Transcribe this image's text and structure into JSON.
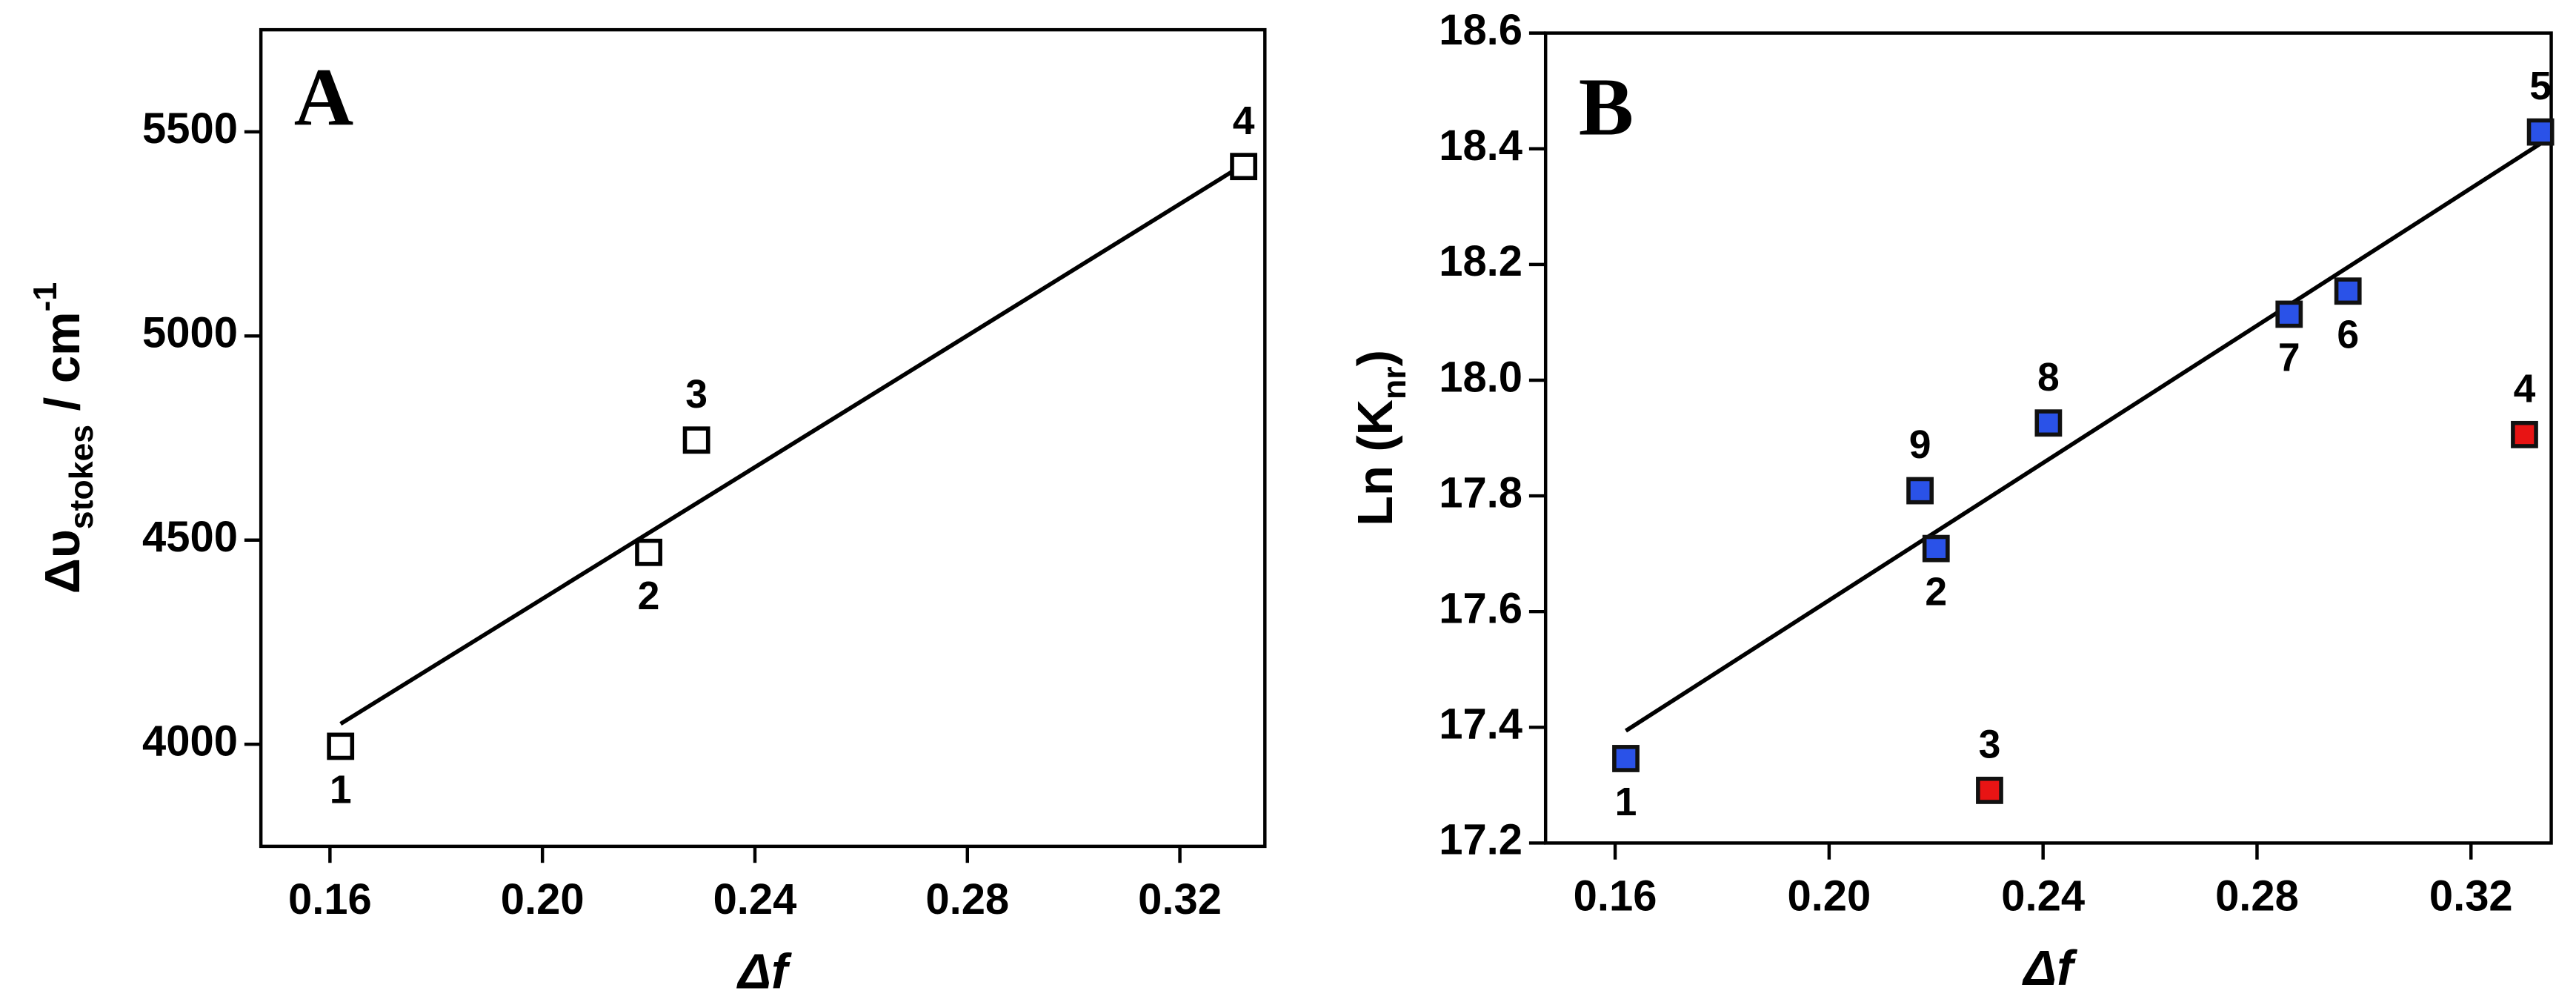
{
  "chart_data": [
    {
      "type": "scatter",
      "panel_label": "A",
      "xlabel": "Δf",
      "ylabel_parts": [
        "Δυ",
        "stokes",
        " / cm",
        "-1"
      ],
      "xlim": [
        0.147,
        0.336
      ],
      "ylim": [
        3750,
        5750
      ],
      "xticks": [
        0.16,
        {
          "value": 0.2,
          "label": "0.20"
        },
        0.24,
        0.28,
        0.32
      ],
      "yticks": [
        4000,
        4500,
        5000,
        5500
      ],
      "series": [
        {
          "color": "#ffffff",
          "edge_color": "#000000",
          "x": [
            0.162,
            0.22,
            0.229,
            0.332
          ],
          "values": [
            3995,
            4470,
            4745,
            5415
          ],
          "point_labels": [
            "1",
            "2",
            "3",
            "4"
          ]
        }
      ],
      "fit": {
        "color": "#000000",
        "x": [
          0.162,
          0.332
        ],
        "values": [
          4050,
          5420
        ]
      }
    },
    {
      "type": "scatter",
      "panel_label": "B",
      "xlabel": "Δf",
      "ylabel_parts": [
        "Ln (K",
        "nr",
        ")"
      ],
      "xlim": [
        0.147,
        0.335
      ],
      "ylim": [
        17.2,
        18.6
      ],
      "xticks": [
        0.16,
        {
          "value": 0.2,
          "label": "0.20"
        },
        0.24,
        0.28,
        0.32
      ],
      "yticks": [
        17.2,
        17.4,
        17.6,
        17.8,
        {
          "value": 18,
          "label": "18.0"
        },
        18.2,
        18.4,
        18.6
      ],
      "series": [
        {
          "color": "#2a52e8",
          "edge_color": "#111111",
          "x": [
            0.162,
            0.22,
            0.217,
            0.241,
            0.286,
            0.297,
            0.333
          ],
          "values": [
            17.346,
            17.709,
            17.809,
            17.926,
            18.114,
            18.154,
            18.429
          ],
          "point_labels": [
            "1",
            "2",
            "9",
            "8",
            "7",
            "6",
            "5"
          ]
        },
        {
          "color": "#e81414",
          "edge_color": "#111111",
          "x": [
            0.23,
            0.33
          ],
          "values": [
            17.291,
            17.906
          ],
          "point_labels": [
            "3",
            "4"
          ]
        }
      ],
      "fit": {
        "color": "#000000",
        "x": [
          0.162,
          0.333
        ],
        "values": [
          17.394,
          18.409
        ]
      }
    }
  ]
}
